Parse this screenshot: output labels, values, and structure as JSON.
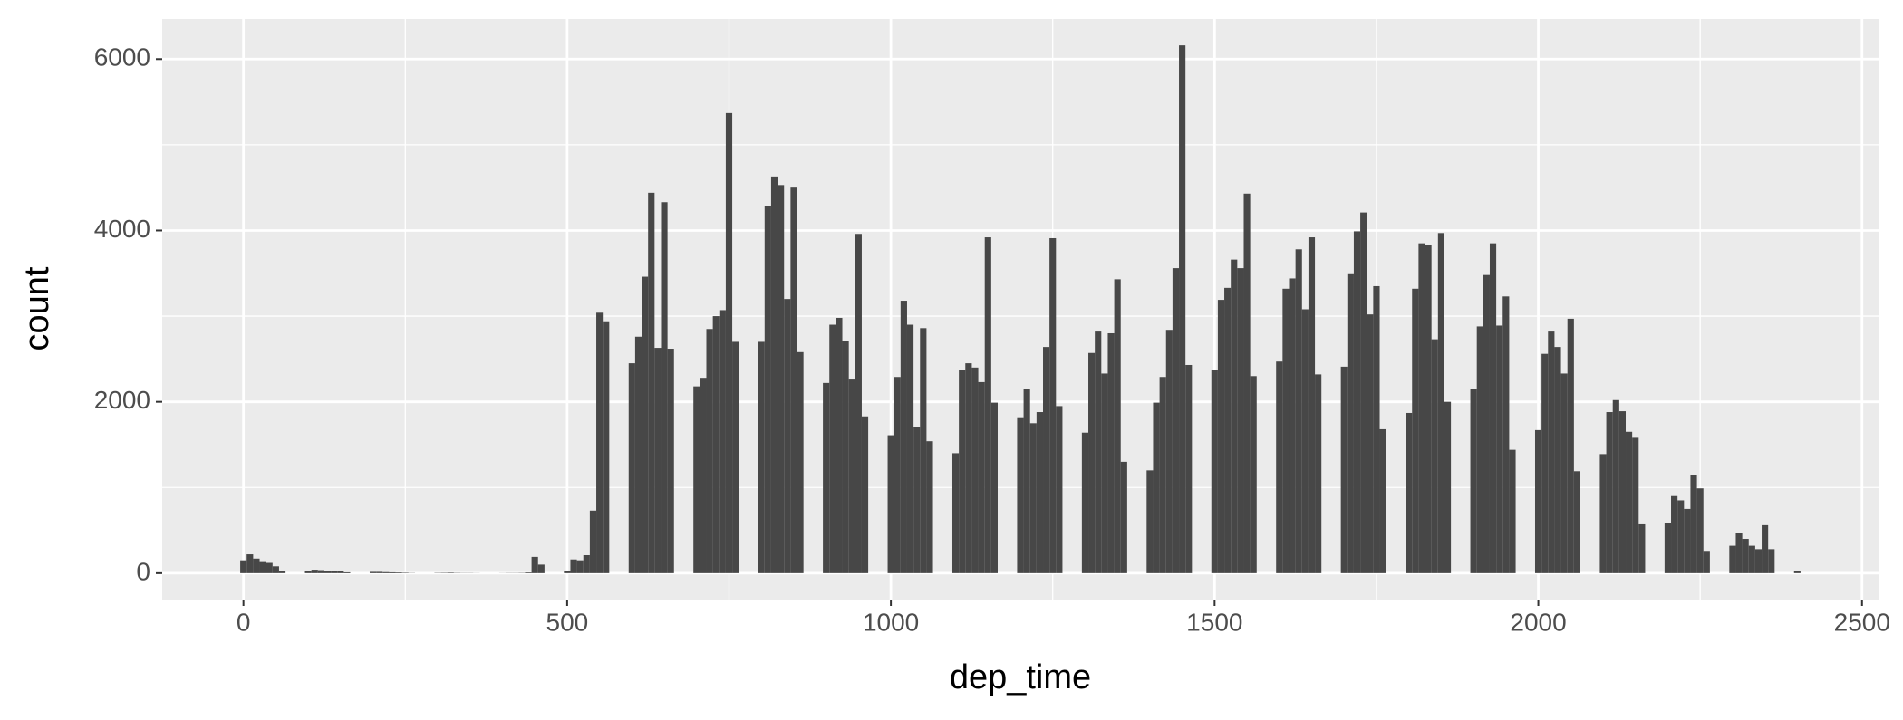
{
  "chart_data": {
    "type": "histogram",
    "x_label": "dep_time",
    "y_label": "count",
    "bins": [
      -5,
      5,
      15,
      25,
      35,
      45,
      55,
      65,
      75,
      85,
      95,
      105,
      115,
      125,
      135,
      145,
      155,
      165,
      175,
      185,
      195,
      205,
      215,
      225,
      235,
      245,
      255,
      265,
      275,
      285,
      295,
      305,
      315,
      325,
      335,
      345,
      355,
      365,
      375,
      385,
      395,
      405,
      415,
      425,
      435,
      445,
      455,
      465,
      475,
      485,
      495,
      505,
      515,
      525,
      535,
      545,
      555,
      565,
      575,
      585,
      595,
      605,
      615,
      625,
      635,
      645,
      655,
      665,
      675,
      685,
      695,
      705,
      715,
      725,
      735,
      745,
      755,
      765,
      775,
      785,
      795,
      805,
      815,
      825,
      835,
      845,
      855,
      865,
      875,
      885,
      895,
      905,
      915,
      925,
      935,
      945,
      955,
      965,
      975,
      985,
      995,
      1005,
      1015,
      1025,
      1035,
      1045,
      1055,
      1065,
      1075,
      1085,
      1095,
      1105,
      1115,
      1125,
      1135,
      1145,
      1155,
      1165,
      1175,
      1185,
      1195,
      1205,
      1215,
      1225,
      1235,
      1245,
      1255,
      1265,
      1275,
      1285,
      1295,
      1305,
      1315,
      1325,
      1335,
      1345,
      1355,
      1365,
      1375,
      1385,
      1395,
      1405,
      1415,
      1425,
      1435,
      1445,
      1455,
      1465,
      1475,
      1485,
      1495,
      1505,
      1515,
      1525,
      1535,
      1545,
      1555,
      1565,
      1575,
      1585,
      1595,
      1605,
      1615,
      1625,
      1635,
      1645,
      1655,
      1665,
      1675,
      1685,
      1695,
      1705,
      1715,
      1725,
      1735,
      1745,
      1755,
      1765,
      1775,
      1785,
      1795,
      1805,
      1815,
      1825,
      1835,
      1845,
      1855,
      1865,
      1875,
      1885,
      1895,
      1905,
      1915,
      1925,
      1935,
      1945,
      1955,
      1965,
      1975,
      1985,
      1995,
      2005,
      2015,
      2025,
      2035,
      2045,
      2055,
      2065,
      2075,
      2085,
      2095,
      2105,
      2115,
      2125,
      2135,
      2145,
      2155,
      2165,
      2175,
      2185,
      2195,
      2205,
      2215,
      2225,
      2235,
      2245,
      2255,
      2265,
      2275,
      2285,
      2295,
      2305,
      2315,
      2325,
      2335,
      2345,
      2355,
      2365,
      2375,
      2385,
      2395,
      2405
    ],
    "values": [
      150,
      220,
      170,
      140,
      120,
      80,
      30,
      0,
      0,
      0,
      30,
      40,
      35,
      25,
      20,
      30,
      10,
      0,
      0,
      0,
      15,
      15,
      12,
      10,
      8,
      5,
      2,
      0,
      0,
      0,
      3,
      4,
      6,
      3,
      2,
      2,
      1,
      0,
      0,
      0,
      1,
      2,
      2,
      3,
      8,
      190,
      100,
      0,
      0,
      0,
      30,
      160,
      150,
      210,
      730,
      3040,
      2940,
      0,
      0,
      0,
      2450,
      2760,
      3460,
      4440,
      2630,
      4330,
      2620,
      0,
      0,
      0,
      2180,
      2280,
      2850,
      3000,
      3070,
      5370,
      2700,
      0,
      0,
      0,
      2700,
      4280,
      4630,
      4530,
      3200,
      4500,
      2580,
      0,
      0,
      0,
      2220,
      2900,
      2980,
      2710,
      2260,
      3960,
      1830,
      0,
      0,
      0,
      1610,
      2290,
      3180,
      2900,
      1710,
      2860,
      1540,
      0,
      0,
      0,
      1400,
      2370,
      2450,
      2400,
      2230,
      3920,
      1990,
      0,
      0,
      0,
      1820,
      2150,
      1750,
      1880,
      2640,
      3910,
      1950,
      0,
      0,
      0,
      1640,
      2570,
      2820,
      2330,
      2800,
      3430,
      1300,
      0,
      0,
      0,
      1200,
      1990,
      2290,
      2840,
      3560,
      6160,
      2430,
      0,
      0,
      0,
      2370,
      3190,
      3330,
      3660,
      3560,
      4430,
      2300,
      0,
      0,
      0,
      2470,
      3320,
      3440,
      3780,
      3080,
      3920,
      2320,
      0,
      0,
      0,
      2410,
      3500,
      3990,
      4210,
      3020,
      3350,
      1680,
      0,
      0,
      0,
      1870,
      3320,
      3850,
      3830,
      2730,
      3970,
      2000,
      0,
      0,
      0,
      2150,
      2880,
      3480,
      3850,
      2890,
      3230,
      1440,
      0,
      0,
      0,
      1670,
      2560,
      2820,
      2640,
      2330,
      2970,
      1190,
      0,
      0,
      0,
      1390,
      1880,
      2020,
      1890,
      1650,
      1580,
      570,
      0,
      0,
      0,
      590,
      900,
      850,
      750,
      1150,
      990,
      260,
      0,
      0,
      0,
      320,
      470,
      400,
      320,
      280,
      560,
      280,
      0,
      0,
      0,
      30
    ],
    "color": "#474747",
    "xlim": [
      -125.5,
      2525.5
    ],
    "ylim": [
      -308,
      6468
    ],
    "xticks": [
      0,
      500,
      1000,
      1500,
      2000,
      2500
    ],
    "yticks": [
      0,
      2000,
      4000,
      6000
    ],
    "xminor": [
      250,
      750,
      1250,
      1750,
      2250
    ],
    "yminor": [
      1000,
      3000,
      5000
    ],
    "grid": true
  }
}
